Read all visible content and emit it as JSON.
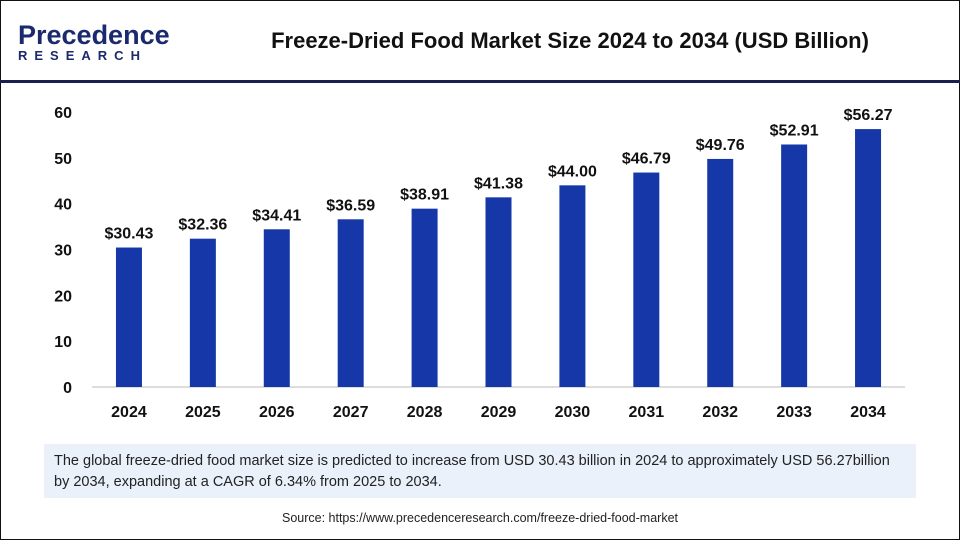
{
  "header": {
    "logo_top": "Precedence",
    "logo_bottom": "RESEARCH",
    "title": "Freeze-Dried Food Market Size 2024 to 2034 (USD Billion)"
  },
  "colors": {
    "bar": "#1537a8",
    "header_line": "#1a1f4e",
    "note_bg": "#eaf1fb"
  },
  "chart_data": {
    "type": "bar",
    "title": "Freeze-Dried Food Market Size 2024 to 2034 (USD Billion)",
    "categories": [
      "2024",
      "2025",
      "2026",
      "2027",
      "2028",
      "2029",
      "2030",
      "2031",
      "2032",
      "2033",
      "2034"
    ],
    "values": [
      30.43,
      32.36,
      34.41,
      36.59,
      38.91,
      41.38,
      44.0,
      46.79,
      49.76,
      52.91,
      56.27
    ],
    "data_labels": [
      "$30.43",
      "$32.36",
      "$34.41",
      "$36.59",
      "$38.91",
      "$41.38",
      "$44.00",
      "$46.79",
      "$49.76",
      "$52.91",
      "$56.27"
    ],
    "yticks": [
      "0",
      "10",
      "20",
      "30",
      "40",
      "50",
      "60"
    ],
    "ylim": [
      0,
      60
    ],
    "grid": false,
    "xlabel": "",
    "ylabel": ""
  },
  "note": "The global freeze-dried food market size is predicted to increase from USD 30.43 billion in 2024 to approximately USD 56.27billion by 2034, expanding at a CAGR of 6.34% from 2025 to 2034.",
  "source": "Source: https://www.precedenceresearch.com/freeze-dried-food-market"
}
